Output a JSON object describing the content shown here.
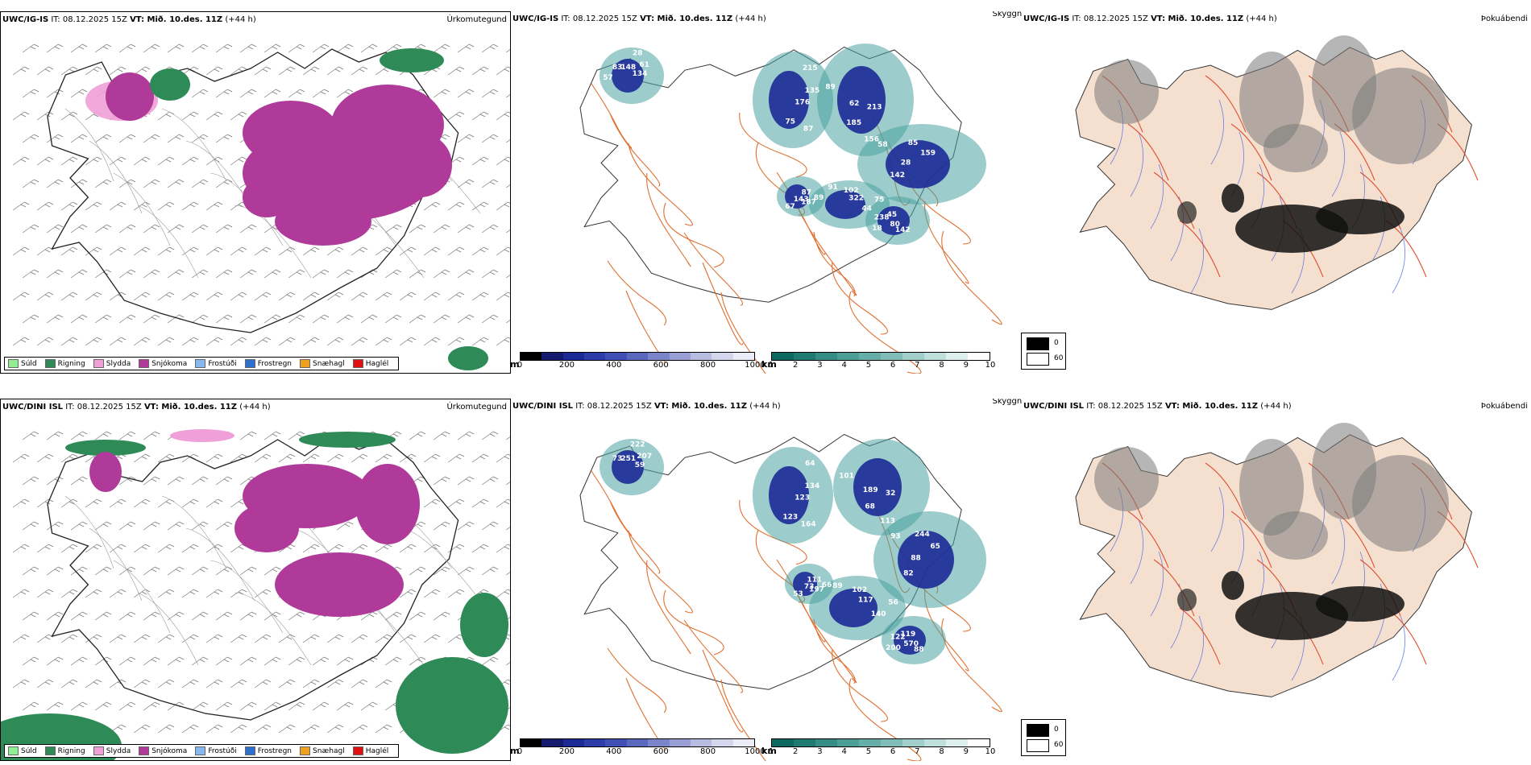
{
  "colors": {
    "sudd": "#90ee90",
    "rigning": "#2e8b57",
    "slydda": "#f0a0d8",
    "snjokoma": "#b03a9a",
    "frostudi": "#87b8ee",
    "frostregn": "#2f6fcf",
    "snaehagl": "#f0a020",
    "haglel": "#e01010",
    "land_fill": "#f5e0d0",
    "roads": "#e07030",
    "rivers": "#6d7fe0"
  },
  "rows": [
    {
      "model": "UWC/IG-IS",
      "it_label": "IT: 08.12.2025 15Z",
      "vt_label": "VT: Mið. 10.des. 11Z",
      "lead": "(+44 h)",
      "numbers": [
        "134",
        "75",
        "89",
        "159",
        "44",
        "67",
        "45",
        "61",
        "87",
        "62",
        "85",
        "75",
        "143",
        "238",
        "28",
        "176",
        "185",
        "58",
        "322",
        "187",
        "18",
        "148",
        "135",
        "156",
        "28",
        "102",
        "89",
        "80",
        "83",
        "215",
        "213",
        "142",
        "91",
        "87",
        "142",
        "57"
      ]
    },
    {
      "model": "UWC/DINI ISL",
      "it_label": "IT: 08.12.2025 15Z",
      "vt_label": "VT: Mið. 10.des. 11Z",
      "lead": "(+44 h)",
      "numbers": [
        "59",
        "123",
        "101",
        "65",
        "140",
        "53",
        "119",
        "207",
        "164",
        "189",
        "244",
        "56",
        "73",
        "122",
        "222",
        "123",
        "68",
        "93",
        "117",
        "197",
        "200",
        "251",
        "134",
        "113",
        "88",
        "102",
        "66",
        "570",
        "73",
        "64",
        "32",
        "82",
        "89",
        "111",
        "88"
      ]
    }
  ],
  "titles": {
    "precip_type": "Úrkomutegund",
    "visibility": "Skyggni",
    "fog": "Þokuábendi"
  },
  "precip_legend": [
    "Súld",
    "Rigning",
    "Slydda",
    "Snjókoma",
    "Frostúði",
    "Frostregn",
    "Snæhagl",
    "Haglél"
  ],
  "vis_legend": {
    "m_unit": "m",
    "m_ticks": [
      "0",
      "200",
      "400",
      "600",
      "800",
      "1000"
    ],
    "km_unit": "km",
    "km_ticks": [
      "1",
      "2",
      "3",
      "4",
      "5",
      "6",
      "7",
      "8",
      "9",
      "10"
    ]
  },
  "fog_legend": [
    "0",
    "60"
  ]
}
